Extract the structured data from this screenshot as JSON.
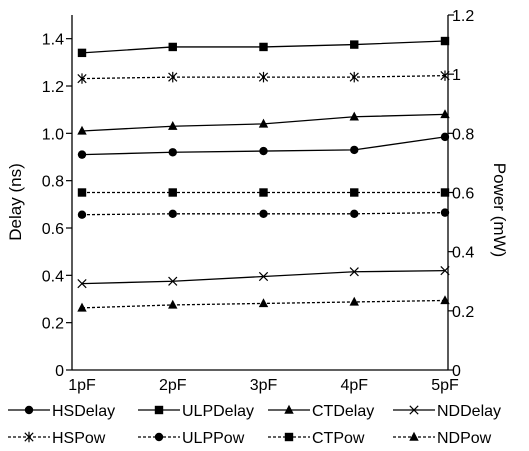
{
  "chart_data": {
    "type": "line",
    "title": "",
    "x": [
      "1pF",
      "2pF",
      "3pF",
      "4pF",
      "5pF"
    ],
    "y_left": {
      "label": "Delay (ns)",
      "range": [
        0,
        1.5
      ],
      "ticks": [
        0,
        0.2,
        0.4,
        0.6,
        0.8,
        1.0,
        1.2,
        1.4
      ],
      "tick_labels": [
        "0",
        "0.2",
        "0.4",
        "0.6",
        "0.8",
        "1.0",
        "1.2",
        "1.4"
      ]
    },
    "y_right": {
      "label": "Power (mW)",
      "range": [
        0,
        1.2
      ],
      "ticks": [
        0,
        0.2,
        0.4,
        0.6,
        0.8,
        1.0,
        1.2
      ],
      "tick_labels": [
        "0",
        "0.2",
        "0.4",
        "0.6",
        "0.8",
        "1",
        "1.2"
      ]
    },
    "grid": false,
    "legend_position": "bottom",
    "series": [
      {
        "name": "HSDelay",
        "axis": "left",
        "dash": "solid",
        "marker": "circle",
        "values": [
          0.91,
          0.92,
          0.925,
          0.93,
          0.985
        ]
      },
      {
        "name": "ULPDelay",
        "axis": "left",
        "dash": "solid",
        "marker": "square",
        "values": [
          1.34,
          1.365,
          1.365,
          1.375,
          1.39
        ]
      },
      {
        "name": "CTDelay",
        "axis": "left",
        "dash": "solid",
        "marker": "triangle",
        "values": [
          1.01,
          1.03,
          1.04,
          1.07,
          1.08
        ]
      },
      {
        "name": "NDDelay",
        "axis": "left",
        "dash": "solid",
        "marker": "x",
        "values": [
          0.365,
          0.375,
          0.395,
          0.415,
          0.42
        ]
      },
      {
        "name": "HSPow",
        "axis": "right",
        "dash": "dashed",
        "marker": "star",
        "values": [
          0.985,
          0.99,
          0.99,
          0.99,
          0.995
        ]
      },
      {
        "name": "ULPPow",
        "axis": "right",
        "dash": "dashed",
        "marker": "circle",
        "values": [
          0.525,
          0.528,
          0.528,
          0.528,
          0.532
        ]
      },
      {
        "name": "CTPow",
        "axis": "right",
        "dash": "dashed",
        "marker": "square",
        "values": [
          0.6,
          0.6,
          0.6,
          0.6,
          0.6
        ]
      },
      {
        "name": "NDPow",
        "axis": "right",
        "dash": "dashed",
        "marker": "triangle",
        "values": [
          0.21,
          0.22,
          0.225,
          0.23,
          0.235
        ]
      }
    ]
  }
}
